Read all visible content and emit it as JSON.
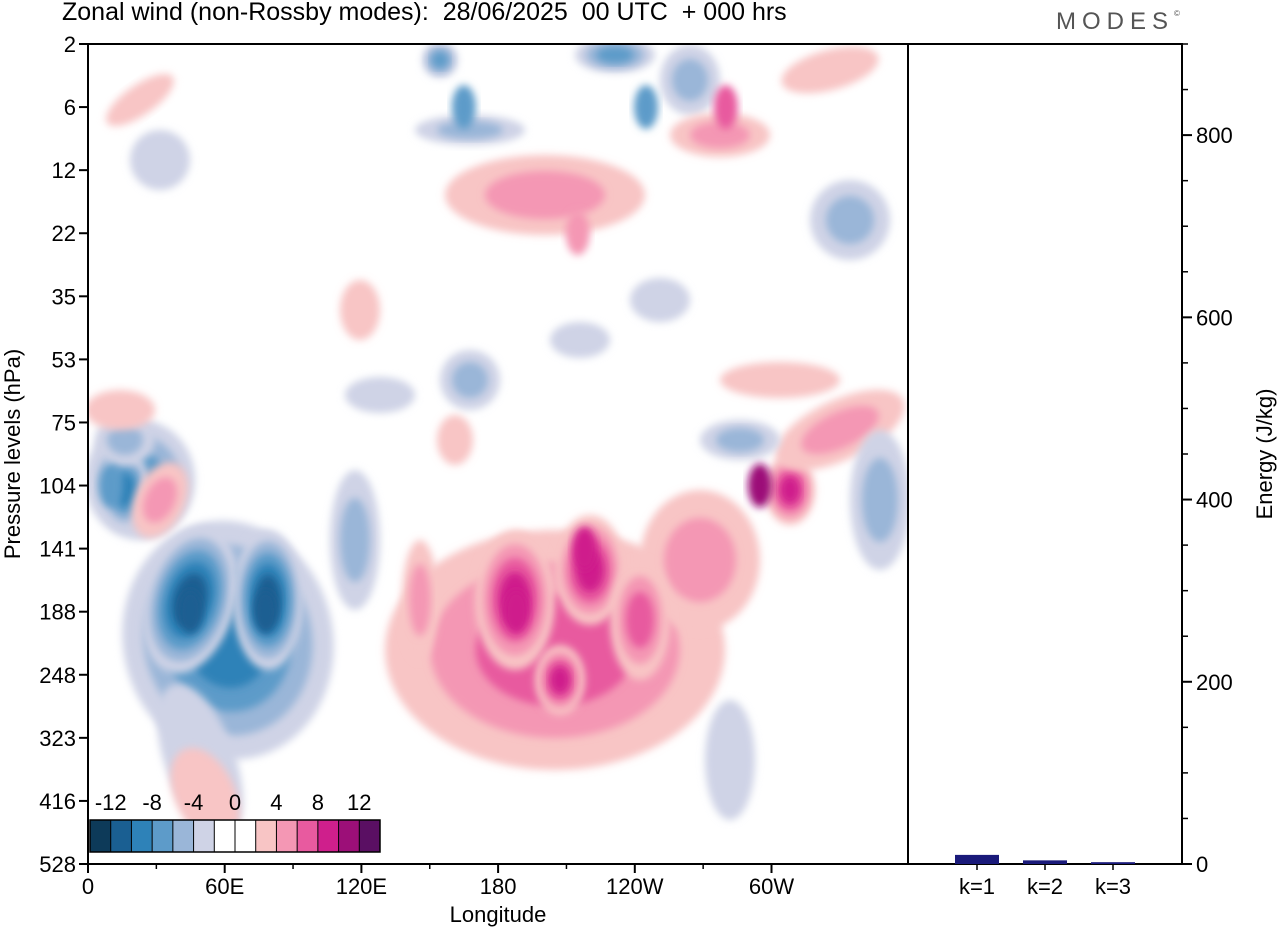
{
  "title": "Zonal wind (non-Rossby modes):  28/06/2025  00 UTC  + 000 hrs",
  "brand": "MODES",
  "brand_mark": "©",
  "chart_data": [
    {
      "type": "heatmap",
      "xlabel": "Longitude",
      "ylabel": "Pressure levels (hPa)",
      "x_ticks": [
        "0",
        "60E",
        "120E",
        "180",
        "120W",
        "60W"
      ],
      "y_ticks": [
        "2",
        "6",
        "12",
        "22",
        "35",
        "53",
        "75",
        "104",
        "141",
        "188",
        "248",
        "323",
        "416",
        "528"
      ],
      "y_inverted": true,
      "colorbar": {
        "tick_labels": [
          "-12",
          "-8",
          "-4",
          "0",
          "4",
          "8",
          "12"
        ],
        "levels": [
          -14,
          -12,
          -10,
          -8,
          -6,
          -4,
          -2,
          2,
          4,
          6,
          8,
          10,
          12,
          14
        ],
        "colors": [
          "#0d3a59",
          "#1a5f92",
          "#2e82b8",
          "#5d9bc9",
          "#9ab6d8",
          "#cfd3e6",
          "#ffffff",
          "#ffffff",
          "#f8c5c5",
          "#f497b4",
          "#e85a9f",
          "#cf1f8c",
          "#9c0f78",
          "#5a0f63"
        ]
      },
      "features": [
        {
          "lon": 45,
          "lev": 188,
          "value": -12
        },
        {
          "lon": 78,
          "lev": 188,
          "value": -12
        },
        {
          "lon": 10,
          "lev": 104,
          "value": -8
        },
        {
          "lon": 218,
          "lev": 141,
          "value": 10
        },
        {
          "lon": 188,
          "lev": 188,
          "value": 10
        },
        {
          "lon": 295,
          "lev": 104,
          "value": 12
        },
        {
          "lon": 165,
          "lev": 6,
          "value": -8
        },
        {
          "lon": 245,
          "lev": 6,
          "value": -8
        },
        {
          "lon": 215,
          "lev": 22,
          "value": 6
        },
        {
          "lon": 280,
          "lev": 6,
          "value": 8
        }
      ]
    },
    {
      "type": "bar",
      "ylabel": "Energy (J/kg)",
      "categories": [
        "k=1",
        "k=2",
        "k=3"
      ],
      "values": [
        10,
        4,
        2
      ],
      "ylim": [
        0,
        900
      ],
      "y_ticks": [
        "0",
        "200",
        "400",
        "600",
        "800"
      ],
      "bar_color": "#1a1a7a"
    }
  ]
}
